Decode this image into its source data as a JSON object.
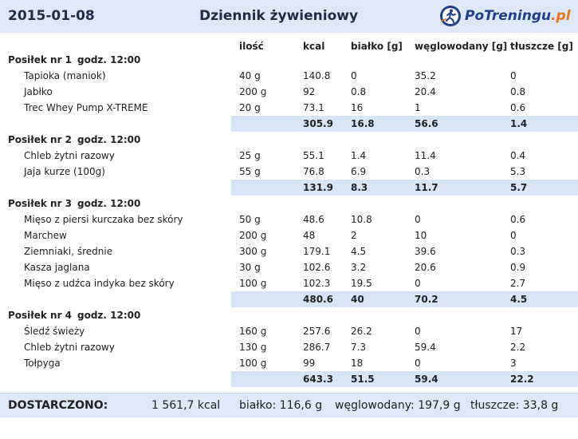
{
  "header": {
    "date": "2015-01-08",
    "title": "Dziennik żywieniowy",
    "logo_main": "PoTreningu",
    "logo_tld": ".pl"
  },
  "columns": {
    "qty": "ilość",
    "kcal": "kcal",
    "protein": "białko [g]",
    "carbs": "węglowodany [g]",
    "fat": "tłuszcze [g]"
  },
  "meals": [
    {
      "label": "Posiłek nr 1",
      "time": "godz. 12:00",
      "items": [
        {
          "name": "Tapioka (maniok)",
          "qty": "40 g",
          "kcal": "140.8",
          "protein": "0",
          "carbs": "35.2",
          "fat": "0"
        },
        {
          "name": "Jabłko",
          "qty": "200 g",
          "kcal": "92",
          "protein": "0.8",
          "carbs": "20.4",
          "fat": "0.8"
        },
        {
          "name": "Trec Whey Pump X-TREME",
          "qty": "20 g",
          "kcal": "73.1",
          "protein": "16",
          "carbs": "1",
          "fat": "0.6"
        }
      ],
      "total": {
        "kcal": "305.9",
        "protein": "16.8",
        "carbs": "56.6",
        "fat": "1.4"
      }
    },
    {
      "label": "Posiłek nr 2",
      "time": "godz. 12:00",
      "items": [
        {
          "name": "Chleb żytni razowy",
          "qty": "25 g",
          "kcal": "55.1",
          "protein": "1.4",
          "carbs": "11.4",
          "fat": "0.4"
        },
        {
          "name": "Jaja kurze (100g)",
          "qty": "55 g",
          "kcal": "76.8",
          "protein": "6.9",
          "carbs": "0.3",
          "fat": "5.3"
        }
      ],
      "total": {
        "kcal": "131.9",
        "protein": "8.3",
        "carbs": "11.7",
        "fat": "5.7"
      }
    },
    {
      "label": "Posiłek nr 3",
      "time": "godz. 12:00",
      "items": [
        {
          "name": "Mięso z piersi kurczaka bez skóry",
          "qty": "50 g",
          "kcal": "48.6",
          "protein": "10.8",
          "carbs": "0",
          "fat": "0.6"
        },
        {
          "name": "Marchew",
          "qty": "200 g",
          "kcal": "48",
          "protein": "2",
          "carbs": "10",
          "fat": "0"
        },
        {
          "name": "Ziemniaki, średnie",
          "qty": "300 g",
          "kcal": "179.1",
          "protein": "4.5",
          "carbs": "39.6",
          "fat": "0.3"
        },
        {
          "name": "Kasza jaglana",
          "qty": "30 g",
          "kcal": "102.6",
          "protein": "3.2",
          "carbs": "20.6",
          "fat": "0.9"
        },
        {
          "name": "Mięso z udźca indyka bez skóry",
          "qty": "100 g",
          "kcal": "102.3",
          "protein": "19.5",
          "carbs": "0",
          "fat": "2.7"
        }
      ],
      "total": {
        "kcal": "480.6",
        "protein": "40",
        "carbs": "70.2",
        "fat": "4.5"
      }
    },
    {
      "label": "Posiłek nr 4",
      "time": "godz. 12:00",
      "items": [
        {
          "name": "Śledź świeży",
          "qty": "160 g",
          "kcal": "257.6",
          "protein": "26.2",
          "carbs": "0",
          "fat": "17"
        },
        {
          "name": "Chleb żytni razowy",
          "qty": "130 g",
          "kcal": "286.7",
          "protein": "7.3",
          "carbs": "59.4",
          "fat": "2.2"
        },
        {
          "name": "Tołpyga",
          "qty": "100 g",
          "kcal": "99",
          "protein": "18",
          "carbs": "0",
          "fat": "3"
        }
      ],
      "total": {
        "kcal": "643.3",
        "protein": "51.5",
        "carbs": "59.4",
        "fat": "22.2"
      }
    }
  ],
  "footer": {
    "label": "DOSTARCZONO:",
    "kcal": "1 561,7 kcal",
    "protein": "białko: 116,6 g",
    "carbs": "węglowodany: 197,9 g",
    "fat": "tłuszcze: 33,8 g"
  }
}
